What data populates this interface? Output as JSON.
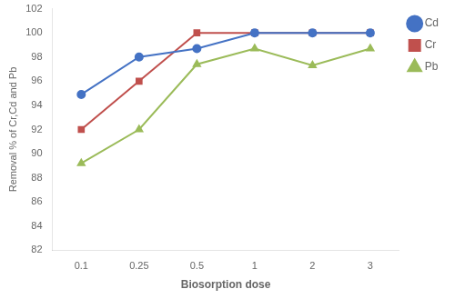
{
  "chart_data": {
    "type": "line",
    "xlabel": "Biosorption dose",
    "ylabel": "Removal % of Cr,Cd and Pb",
    "categories": [
      "0.1",
      "0.25",
      "0.5",
      "1",
      "2",
      "3"
    ],
    "series": [
      {
        "name": "Cd",
        "color": "#4472C4",
        "marker": "circle",
        "values": [
          94.9,
          98.0,
          98.7,
          100.0,
          100.0,
          100.0
        ]
      },
      {
        "name": "Cr",
        "color": "#C0504D",
        "marker": "square",
        "values": [
          92.0,
          96.0,
          100.0,
          100.0,
          100.0,
          100.0
        ]
      },
      {
        "name": "Pb",
        "color": "#9BBB59",
        "marker": "triangle",
        "values": [
          89.2,
          92.0,
          97.4,
          98.7,
          97.3,
          98.7
        ]
      }
    ],
    "ylim": [
      82,
      102
    ],
    "yticks": [
      82,
      84,
      86,
      88,
      90,
      92,
      94,
      96,
      98,
      100,
      102
    ],
    "grid": false,
    "legend": "right"
  }
}
